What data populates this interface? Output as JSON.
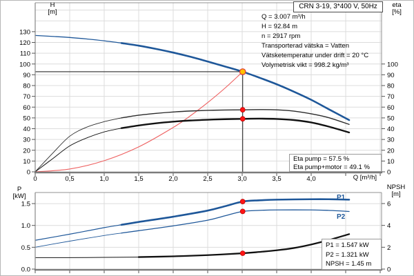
{
  "title_box": {
    "label": "CRN 3-19, 3*400 V, 50Hz"
  },
  "axes": {
    "h": {
      "name": "H",
      "unit": "[m]"
    },
    "eta": {
      "name": "eta",
      "unit": "[%]"
    },
    "p": {
      "name": "P",
      "unit": "[kW]"
    },
    "npsh": {
      "name": "NPSH",
      "unit": "[m]"
    },
    "q_label": "Q [m³/h]"
  },
  "info_lines": [
    "Q = 3.007 m³/h",
    "H = 92.84 m",
    "n = 2917 rpm",
    "Transporterad vätska = Vatten",
    "Vätsketemperatur under drift = 20 °C",
    "Volymetrisk vikt = 998.2 kg/m³"
  ],
  "eta_box": {
    "line1": "Eta pump = 57.5 %",
    "line2": "Eta pump+motor = 49.1 %"
  },
  "result_box": {
    "line1": "P1 = 1.547 kW",
    "line2": "P2 = 1.321 kW",
    "line3": "NPSH = 1.45 m"
  },
  "curve_labels": {
    "p1": "P1",
    "p2": "P2"
  },
  "colors": {
    "curve_blue": "#1e5799",
    "curve_black": "#111111",
    "system_red": "#ee5f5f",
    "dot_red": "#ff1414",
    "dot_yellow": "#ffc300",
    "grid": "#dcdcdc",
    "border": "#909090"
  },
  "chart_data": [
    {
      "id": "head-efficiency-chart",
      "type": "line",
      "title": "CRN 3-19, 3*400 V, 50Hz",
      "xlabel": "Q [m³/h]",
      "xlim": [
        0,
        5.02
      ],
      "grid": {
        "x_step": 0.5,
        "y_step": 10
      },
      "x_ticks": [
        [
          0,
          "0"
        ],
        [
          0.5,
          "0,5"
        ],
        [
          1,
          "1,0"
        ],
        [
          1.5,
          "1,5"
        ],
        [
          2,
          "2,0"
        ],
        [
          2.5,
          "2,5"
        ],
        [
          3,
          "3,0"
        ],
        [
          3.5,
          "3,5"
        ],
        [
          4,
          "4,0"
        ]
      ],
      "left_axis": {
        "label": "H [m]",
        "lim": [
          0,
          156.8
        ],
        "ticks": [
          [
            0,
            "0"
          ],
          [
            10,
            "10"
          ],
          [
            20,
            "20"
          ],
          [
            30,
            "30"
          ],
          [
            40,
            "40"
          ],
          [
            50,
            "50"
          ],
          [
            60,
            "60"
          ],
          [
            70,
            "70"
          ],
          [
            80,
            "80"
          ],
          [
            90,
            "90"
          ],
          [
            100,
            "100"
          ],
          [
            110,
            "110"
          ],
          [
            120,
            "120"
          ],
          [
            130,
            "130"
          ]
        ]
      },
      "right_axis": {
        "label": "eta [%]",
        "lim": [
          0,
          156.8
        ],
        "ticks": [
          [
            0,
            "0"
          ],
          [
            10,
            "10"
          ],
          [
            20,
            "20"
          ],
          [
            30,
            "30"
          ],
          [
            40,
            "40"
          ],
          [
            50,
            "50"
          ],
          [
            60,
            "60"
          ],
          [
            70,
            "70"
          ],
          [
            80,
            "80"
          ],
          [
            90,
            "90"
          ],
          [
            100,
            "100"
          ]
        ]
      },
      "duty_point": {
        "q": 3.007,
        "h": 92.84
      },
      "series": [
        {
          "name": "system-curve",
          "axis": "left",
          "color": "#ee5f5f",
          "width": 1.1,
          "points": [
            [
              0,
              0
            ],
            [
              0.5,
              2.6
            ],
            [
              1,
              10.3
            ],
            [
              1.5,
              23.1
            ],
            [
              2,
              41.1
            ],
            [
              2.25,
              52
            ],
            [
              2.5,
              64.2
            ],
            [
              2.75,
              77.6
            ],
            [
              3.007,
              92.84
            ]
          ]
        },
        {
          "name": "eta-pump-curve",
          "axis": "right",
          "color": "#2a2a2a",
          "width": 1.4,
          "thin_width": 0.9,
          "thin_until": 1.25,
          "points": [
            [
              0,
              0
            ],
            [
              0.25,
              17
            ],
            [
              0.5,
              33
            ],
            [
              0.75,
              41.5
            ],
            [
              1,
              46.5
            ],
            [
              1.25,
              50
            ],
            [
              1.5,
              52.5
            ],
            [
              1.75,
              54.2
            ],
            [
              2,
              55.5
            ],
            [
              2.25,
              56.4
            ],
            [
              2.5,
              57
            ],
            [
              2.75,
              57.3
            ],
            [
              3.007,
              57.5
            ],
            [
              3.25,
              57.7
            ],
            [
              3.5,
              57.5
            ],
            [
              3.75,
              56.3
            ],
            [
              4,
              53.8
            ],
            [
              4.25,
              50.3
            ],
            [
              4.55,
              44
            ]
          ]
        },
        {
          "name": "eta-pump-motor-curve",
          "axis": "right",
          "color": "#111111",
          "width": 2.4,
          "thin_width": 1,
          "thin_until": 1.25,
          "points": [
            [
              0,
              0
            ],
            [
              0.25,
              12
            ],
            [
              0.5,
              24
            ],
            [
              0.75,
              31.5
            ],
            [
              1,
              37
            ],
            [
              1.25,
              40.5
            ],
            [
              1.5,
              43
            ],
            [
              1.75,
              45
            ],
            [
              2,
              46.5
            ],
            [
              2.25,
              47.6
            ],
            [
              2.5,
              48.3
            ],
            [
              2.75,
              48.8
            ],
            [
              3.007,
              49.1
            ],
            [
              3.25,
              49.3
            ],
            [
              3.5,
              49
            ],
            [
              3.75,
              48
            ],
            [
              4,
              45.8
            ],
            [
              4.25,
              42
            ],
            [
              4.55,
              36.5
            ]
          ]
        },
        {
          "name": "head-curve",
          "axis": "left",
          "color": "#1e5799",
          "width": 2.6,
          "thin_width": 1.3,
          "thin_until": 1.25,
          "points": [
            [
              0,
              126.5
            ],
            [
              0.25,
              125.6
            ],
            [
              0.5,
              124.6
            ],
            [
              0.75,
              123.2
            ],
            [
              1,
              121.5
            ],
            [
              1.25,
              119.4
            ],
            [
              1.5,
              117
            ],
            [
              1.75,
              114
            ],
            [
              2,
              110.6
            ],
            [
              2.25,
              106.7
            ],
            [
              2.5,
              102.3
            ],
            [
              2.75,
              97.7
            ],
            [
              3.007,
              92.84
            ],
            [
              3.25,
              87.3
            ],
            [
              3.5,
              81.2
            ],
            [
              3.75,
              74.3
            ],
            [
              4,
              66.8
            ],
            [
              4.25,
              58.2
            ],
            [
              4.55,
              48
            ]
          ]
        }
      ],
      "markers": [
        {
          "q": 3.007,
          "v": 57.5,
          "axis": "right",
          "style": "red"
        },
        {
          "q": 3.007,
          "v": 49.1,
          "axis": "right",
          "style": "red"
        },
        {
          "q": 3.007,
          "v": 92.84,
          "axis": "left",
          "style": "duty"
        }
      ]
    },
    {
      "id": "power-npsh-chart",
      "type": "line",
      "xlim": [
        0,
        5.02
      ],
      "grid": {
        "x_step": 0.5,
        "y_step": 0.5
      },
      "left_axis": {
        "label": "P [kW]",
        "lim": [
          0,
          1.754
        ],
        "ticks": [
          [
            0,
            "0.0"
          ],
          [
            0.5,
            "0.5"
          ],
          [
            1,
            "1.0"
          ],
          [
            1.5,
            "1.5"
          ]
        ]
      },
      "right_axis": {
        "label": "NPSH [m]",
        "lim": [
          0,
          7.01
        ],
        "ticks": [
          [
            0,
            "0"
          ],
          [
            2,
            "2"
          ],
          [
            4,
            "4"
          ],
          [
            6,
            "6"
          ]
        ]
      },
      "series": [
        {
          "name": "p1-curve",
          "axis": "left",
          "color": "#1e5799",
          "width": 2.6,
          "thin_width": 1.2,
          "thin_until": 1.25,
          "points": [
            [
              0,
              0.66
            ],
            [
              0.5,
              0.8
            ],
            [
              1,
              0.95
            ],
            [
              1.25,
              1.015
            ],
            [
              1.5,
              1.08
            ],
            [
              2,
              1.2
            ],
            [
              2.5,
              1.34
            ],
            [
              2.75,
              1.44
            ],
            [
              3.007,
              1.547
            ],
            [
              3.25,
              1.575
            ],
            [
              3.5,
              1.59
            ],
            [
              4,
              1.6
            ],
            [
              4.25,
              1.6
            ],
            [
              4.55,
              1.59
            ]
          ]
        },
        {
          "name": "p2-curve",
          "axis": "left",
          "color": "#1e5799",
          "width": 1.3,
          "thin_width": 0.9,
          "thin_until": 1.25,
          "points": [
            [
              0,
              0.5
            ],
            [
              0.5,
              0.64
            ],
            [
              1,
              0.77
            ],
            [
              1.25,
              0.825
            ],
            [
              1.5,
              0.88
            ],
            [
              2,
              0.99
            ],
            [
              2.5,
              1.12
            ],
            [
              2.75,
              1.22
            ],
            [
              3.007,
              1.321
            ],
            [
              3.25,
              1.345
            ],
            [
              3.5,
              1.355
            ],
            [
              4,
              1.355
            ],
            [
              4.25,
              1.345
            ],
            [
              4.55,
              1.32
            ]
          ]
        },
        {
          "name": "npsh-curve",
          "axis": "right",
          "color": "#111111",
          "width": 2.3,
          "thin_width": 1,
          "thin_until": 1.5,
          "points": [
            [
              0,
              1.05
            ],
            [
              0.5,
              1.05
            ],
            [
              1,
              1.07
            ],
            [
              1.5,
              1.1
            ],
            [
              2,
              1.17
            ],
            [
              2.5,
              1.28
            ],
            [
              3.007,
              1.45
            ],
            [
              3.25,
              1.57
            ],
            [
              3.5,
              1.72
            ],
            [
              3.75,
              1.93
            ],
            [
              4,
              2.25
            ],
            [
              4.25,
              2.65
            ],
            [
              4.55,
              3.2
            ]
          ]
        }
      ],
      "markers": [
        {
          "q": 3.007,
          "v": 1.547,
          "axis": "left",
          "style": "red"
        },
        {
          "q": 3.007,
          "v": 1.321,
          "axis": "left",
          "style": "red"
        },
        {
          "q": 3.007,
          "v": 1.45,
          "axis": "right",
          "style": "red"
        }
      ]
    }
  ]
}
